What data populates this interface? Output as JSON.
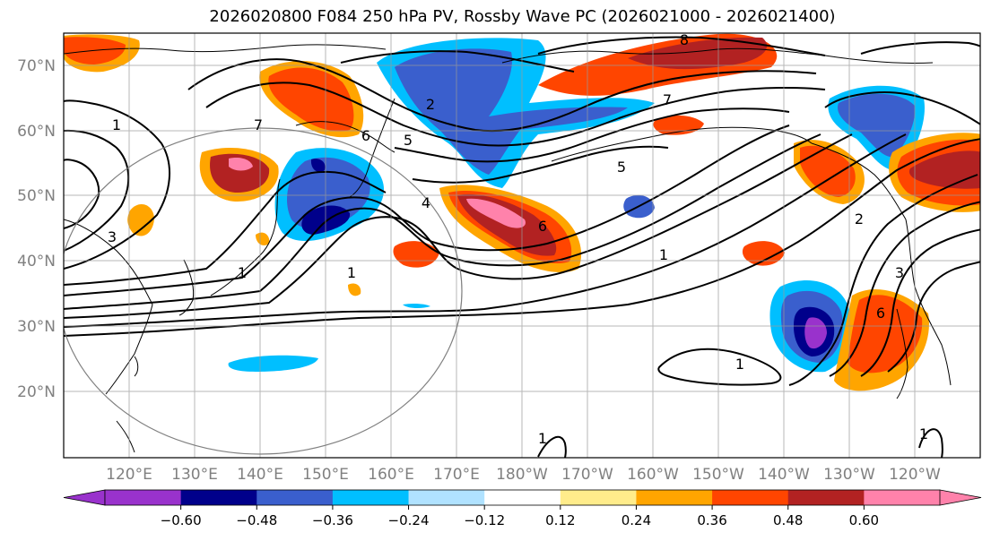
{
  "title": "2026020800 F084 250 hPa PV, Rossby Wave PC (2026021000 - 2026021400)",
  "map": {
    "lat_labels": [
      "70°N",
      "60°N",
      "50°N",
      "40°N",
      "30°N",
      "20°N"
    ],
    "lon_labels": [
      "120°E",
      "130°E",
      "140°E",
      "150°E",
      "160°E",
      "170°E",
      "180°W",
      "170°W",
      "160°W",
      "150°W",
      "140°W",
      "130°W",
      "120°W"
    ],
    "contour_labels": [
      "8",
      "6",
      "7",
      "5",
      "2",
      "1",
      "4",
      "6",
      "3",
      "1",
      "7",
      "6",
      "3",
      "2",
      "1",
      "1",
      "5",
      "1",
      "1",
      "1"
    ]
  },
  "colorbar": {
    "colors": [
      "#9932cc",
      "#00008b",
      "#3a5fcd",
      "#00bfff",
      "#b0e2ff",
      "#ffffff",
      "#ffec8b",
      "#ffa500",
      "#ff4500",
      "#b22222",
      "#ff82ab"
    ],
    "tick_labels": [
      "−0.60",
      "−0.48",
      "−0.36",
      "−0.24",
      "−0.12",
      "0.12",
      "0.24",
      "0.36",
      "0.48",
      "0.60"
    ]
  },
  "palette": {
    "ocean": "#ffffff",
    "grid": "#999999",
    "coast": "#000000",
    "axis_label": "#808080",
    "circle": "#808080"
  }
}
